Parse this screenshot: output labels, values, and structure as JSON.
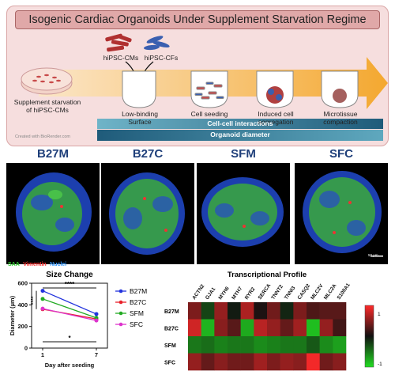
{
  "schematic": {
    "title": "Isogenic Cardiac Organoids Under Supplement Starvation Regime",
    "cm_label": "hiPSC-CMs",
    "cf_label": "hiPSC-CFs",
    "step_starvation": "Supplement starvation of hiPSC-CMs",
    "step_lowbinding": "Low-binding Surface",
    "step_seeding": "Cell seeding",
    "step_aggregation": "Induced cell aggregation",
    "step_compaction": "Microtissue compaction",
    "bar_interactions": "Cell-cell interactions",
    "bar_diameter": "Organoid diameter",
    "credit": "Created with BioRender.com"
  },
  "microscopy": {
    "panels": [
      "B27M",
      "B27C",
      "SFM",
      "SFC"
    ],
    "stain_saa": "SAA",
    "stain_vimentin": "Vimentin",
    "stain_nuclei": "Nuclei",
    "scale_bar": "50 µm"
  },
  "chart_data": [
    {
      "type": "line",
      "title": "Size Change",
      "xlabel": "Day after seeding",
      "ylabel": "Diameter (µm)",
      "x": [
        1,
        7
      ],
      "ylim": [
        0,
        600
      ],
      "yticks": [
        0,
        200,
        400,
        600
      ],
      "series": [
        {
          "name": "B27M",
          "color": "#2233dd",
          "values": [
            530,
            315
          ]
        },
        {
          "name": "B27C",
          "color": "#e8202a",
          "values": [
            360,
            270
          ]
        },
        {
          "name": "SFM",
          "color": "#22aa22",
          "values": [
            455,
            280
          ]
        },
        {
          "name": "SFC",
          "color": "#dd33cc",
          "values": [
            365,
            255
          ]
        }
      ],
      "annotations": {
        "top": "****",
        "bottom": "*",
        "side": "****"
      }
    },
    {
      "type": "heatmap",
      "title": "Transcriptional Profile",
      "columns": [
        "ACTN2",
        "GJA1",
        "MYH6",
        "MYH7",
        "RYR2",
        "SERCA",
        "TNNT2",
        "TNNI3",
        "CASQ2",
        "MLC2V",
        "MLC2A",
        "S100A1"
      ],
      "rows": [
        "B27M",
        "B27C",
        "SFM",
        "SFC"
      ],
      "values": [
        [
          0.45,
          -0.25,
          0.55,
          -0.05,
          0.65,
          0.05,
          0.4,
          -0.1,
          0.45,
          0.25,
          0.3,
          0.3
        ],
        [
          0.8,
          -0.8,
          0.5,
          0.3,
          -0.75,
          0.7,
          0.55,
          0.35,
          0.6,
          -0.85,
          0.55,
          0.2
        ],
        [
          -0.5,
          -0.45,
          -0.55,
          -0.5,
          -0.5,
          -0.6,
          -0.55,
          -0.5,
          -0.5,
          -0.35,
          -0.6,
          -0.7
        ],
        [
          0.55,
          0.35,
          0.5,
          0.4,
          0.4,
          0.6,
          0.45,
          0.55,
          0.5,
          0.95,
          0.4,
          0.5
        ]
      ],
      "colorbar_ticks": [
        "1",
        "-1"
      ],
      "vmin": -1,
      "vmax": 1
    }
  ],
  "colors": {
    "heat_high": "#ff2a2a",
    "heat_mid": "#111111",
    "heat_low": "#22dd22",
    "nav_bar": "#1f5b7a"
  }
}
